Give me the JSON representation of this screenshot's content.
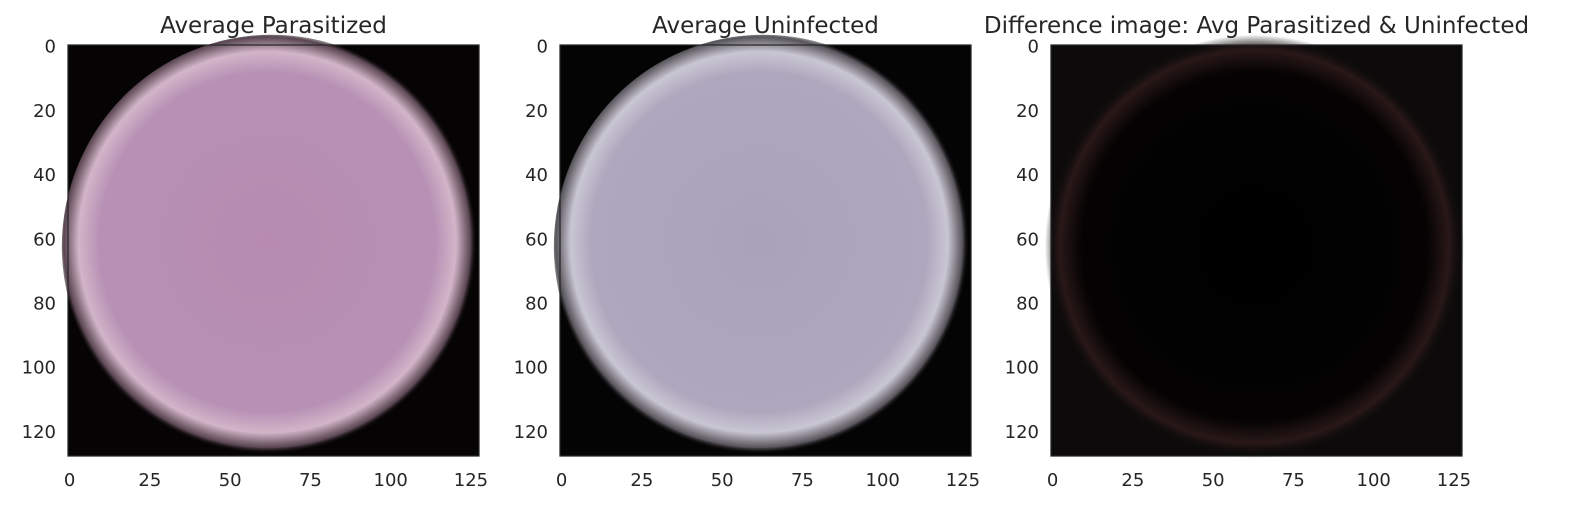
{
  "chart_data": [
    {
      "type": "image",
      "title": "Average Parasitized",
      "xticks": [
        0,
        25,
        50,
        75,
        100,
        125
      ],
      "yticks": [
        0,
        20,
        40,
        60,
        80,
        100,
        120
      ],
      "xlim": [
        -0.5,
        127.5
      ],
      "ylim": [
        127.5,
        -0.5
      ],
      "grid": false,
      "image": {
        "content": "average red blood cell, pinkish-purple disc on black background",
        "center_color": "#b78bb1",
        "edge_color": "#d2b5c8",
        "background": "#050303"
      }
    },
    {
      "type": "image",
      "title": "Average Uninfected",
      "xticks": [
        0,
        25,
        50,
        75,
        100,
        125
      ],
      "yticks": [
        0,
        20,
        40,
        60,
        80,
        100,
        120
      ],
      "xlim": [
        -0.5,
        127.5
      ],
      "ylim": [
        127.5,
        -0.5
      ],
      "grid": false,
      "image": {
        "content": "average red blood cell, pale lavender-grey disc on black background",
        "center_color": "#aaa2b9",
        "edge_color": "#c9c6d3",
        "background": "#050404"
      }
    },
    {
      "type": "image",
      "title": "Difference image: Avg Parasitized & Uninfected",
      "xticks": [
        0,
        25,
        50,
        75,
        100,
        125
      ],
      "yticks": [
        0,
        20,
        40,
        60,
        80,
        100,
        120
      ],
      "xlim": [
        -0.5,
        127.5
      ],
      "ylim": [
        127.5,
        -0.5
      ],
      "grid": false,
      "image": {
        "content": "near-black difference image with faint dark red ring at cell edge",
        "center_color": "#000000",
        "edge_color": "#2a1818",
        "background": "#0c0a0a"
      }
    }
  ]
}
